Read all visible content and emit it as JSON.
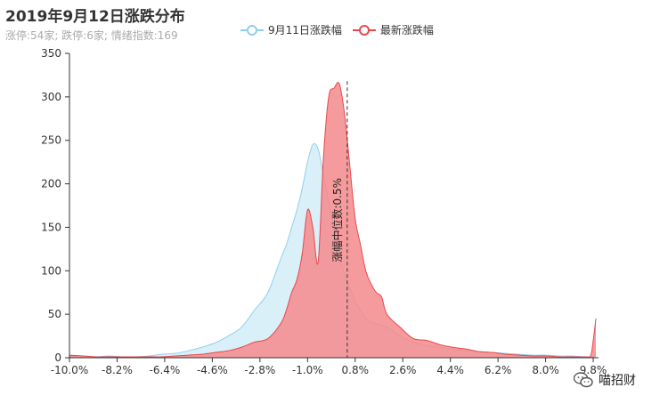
{
  "title": "2019年9月12日涨跌分布",
  "subtitle": "涨停:54家; 跌停:6家; 情绪指数:169",
  "legend": [
    {
      "name": "9月11日涨跌幅",
      "color": "#8ed0ea"
    },
    {
      "name": "最新涨跌幅",
      "color": "#e8484d"
    }
  ],
  "watermark": {
    "text": "喵招财",
    "icon": "wechat-icon"
  },
  "median_label": "涨幅中位数:0.5%",
  "chart_data": {
    "type": "area",
    "title": "2019年9月12日涨跌分布",
    "xlabel": "",
    "ylabel": "",
    "xlim": [
      -10.0,
      10.0
    ],
    "ylim": [
      0,
      350
    ],
    "x_ticks": [
      "-10.0%",
      "-8.2%",
      "-6.4%",
      "-4.6%",
      "-2.8%",
      "-1.0%",
      "0.8%",
      "2.6%",
      "4.4%",
      "6.2%",
      "8.0%",
      "9.8%"
    ],
    "y_ticks": [
      "0",
      "50",
      "100",
      "150",
      "200",
      "250",
      "300",
      "350"
    ],
    "median": 0.5,
    "series": [
      {
        "name": "9月11日涨跌幅",
        "color": "#8ed0ea",
        "fill": "#d6eef8",
        "x": [
          -10.0,
          -9.5,
          -9.0,
          -8.5,
          -8.0,
          -7.5,
          -7.0,
          -6.5,
          -6.0,
          -5.5,
          -5.0,
          -4.5,
          -4.0,
          -3.5,
          -3.0,
          -2.5,
          -2.0,
          -1.8,
          -1.6,
          -1.4,
          -1.2,
          -1.0,
          -0.8,
          -0.6,
          -0.4,
          -0.2,
          0.0,
          0.2,
          0.4,
          0.6,
          0.8,
          1.0,
          1.2,
          1.5,
          2.0,
          2.5,
          3.0,
          3.5,
          4.0,
          4.5,
          5.0,
          5.5,
          6.0,
          6.5,
          7.0,
          7.5,
          8.0,
          8.5,
          9.0,
          9.5,
          9.8
        ],
        "y": [
          2,
          2,
          1,
          2,
          1,
          1,
          2,
          4,
          5,
          8,
          12,
          17,
          25,
          35,
          55,
          75,
          115,
          130,
          150,
          170,
          195,
          225,
          245,
          240,
          210,
          180,
          150,
          120,
          95,
          80,
          65,
          55,
          45,
          40,
          35,
          25,
          18,
          14,
          12,
          10,
          8,
          7,
          6,
          5,
          4,
          3,
          3,
          2,
          2,
          1,
          1
        ]
      },
      {
        "name": "最新涨跌幅",
        "color": "#e8484d",
        "fill": "#f58a8c",
        "x": [
          -10.0,
          -9.5,
          -9.0,
          -8.5,
          -8.0,
          -7.5,
          -7.0,
          -6.5,
          -6.0,
          -5.5,
          -5.0,
          -4.5,
          -4.0,
          -3.5,
          -3.0,
          -2.5,
          -2.0,
          -1.8,
          -1.6,
          -1.4,
          -1.2,
          -1.0,
          -0.8,
          -0.6,
          -0.4,
          -0.2,
          0.0,
          0.2,
          0.4,
          0.6,
          0.8,
          1.0,
          1.2,
          1.4,
          1.6,
          1.8,
          2.0,
          2.5,
          3.0,
          3.5,
          4.0,
          4.5,
          5.0,
          5.5,
          6.0,
          6.5,
          7.0,
          7.5,
          8.0,
          8.5,
          9.0,
          9.5,
          9.7,
          9.8,
          9.9
        ],
        "y": [
          3,
          2,
          1,
          1,
          1,
          1,
          1,
          1,
          2,
          3,
          4,
          6,
          8,
          12,
          18,
          22,
          40,
          55,
          75,
          90,
          120,
          170,
          150,
          110,
          230,
          300,
          310,
          315,
          280,
          220,
          160,
          130,
          100,
          85,
          75,
          70,
          50,
          35,
          22,
          20,
          15,
          12,
          10,
          7,
          6,
          4,
          3,
          2,
          2,
          1,
          1,
          1,
          2,
          20,
          45
        ]
      }
    ]
  }
}
